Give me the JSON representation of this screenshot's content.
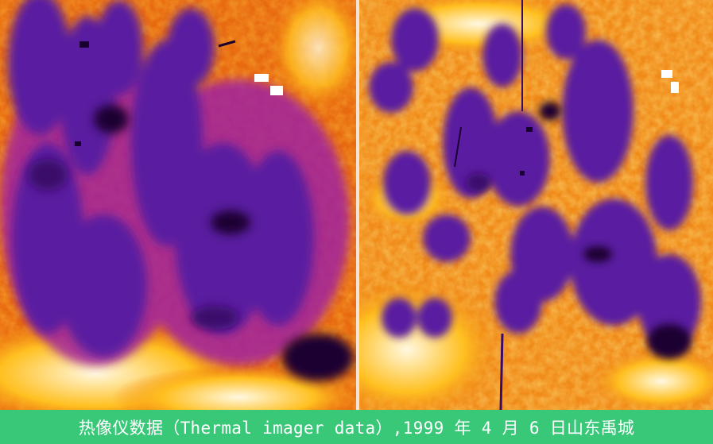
{
  "caption": "热像仪数据（Thermal imager data）,1999 年 4 月 6 日山东禹城",
  "palette": {
    "cold": "#1a0030",
    "dark_purple": "#3a0a6a",
    "purple": "#5a1ca0",
    "magenta": "#a020a0",
    "orange": "#f08010",
    "yellow": "#ffc020",
    "hot": "#fff8e0",
    "caption_bar": "#38c878"
  }
}
